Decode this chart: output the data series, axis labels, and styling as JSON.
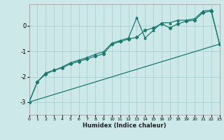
{
  "title": "",
  "xlabel": "Humidex (Indice chaleur)",
  "bg_color": "#cce8e8",
  "grid_color": "#aad0d0",
  "line_color": "#1a7a6e",
  "xlim": [
    0,
    23
  ],
  "ylim": [
    -3.5,
    0.85
  ],
  "yticks": [
    -3,
    -2,
    -1,
    0
  ],
  "xticks": [
    0,
    1,
    2,
    3,
    4,
    5,
    6,
    7,
    8,
    9,
    10,
    11,
    12,
    13,
    14,
    15,
    16,
    17,
    18,
    19,
    20,
    21,
    22,
    23
  ],
  "line1_x": [
    0,
    1,
    2,
    3,
    4,
    5,
    6,
    7,
    8,
    9,
    10,
    11,
    12,
    13,
    14,
    15,
    16,
    17,
    18,
    19,
    20,
    21,
    22,
    23
  ],
  "line1_y": [
    -3.0,
    -2.2,
    -1.9,
    -1.75,
    -1.65,
    -1.5,
    -1.4,
    -1.3,
    -1.2,
    -1.1,
    -0.72,
    -0.62,
    -0.52,
    -0.45,
    -0.18,
    -0.08,
    0.08,
    -0.08,
    0.08,
    0.18,
    0.22,
    0.52,
    0.58,
    -0.72
  ],
  "line2_x": [
    0,
    1,
    2,
    3,
    4,
    5,
    6,
    7,
    8,
    9,
    10,
    11,
    12,
    13,
    14,
    15,
    16,
    17,
    18,
    19,
    20,
    21,
    22,
    23
  ],
  "line2_y": [
    -3.0,
    -2.2,
    -1.85,
    -1.75,
    -1.62,
    -1.45,
    -1.35,
    -1.25,
    -1.12,
    -1.02,
    -0.68,
    -0.58,
    -0.48,
    0.32,
    -0.48,
    -0.18,
    0.12,
    0.12,
    0.22,
    0.22,
    0.28,
    0.58,
    0.62,
    -0.72
  ],
  "line3_x": [
    0,
    23
  ],
  "line3_y": [
    -3.0,
    -0.72
  ]
}
